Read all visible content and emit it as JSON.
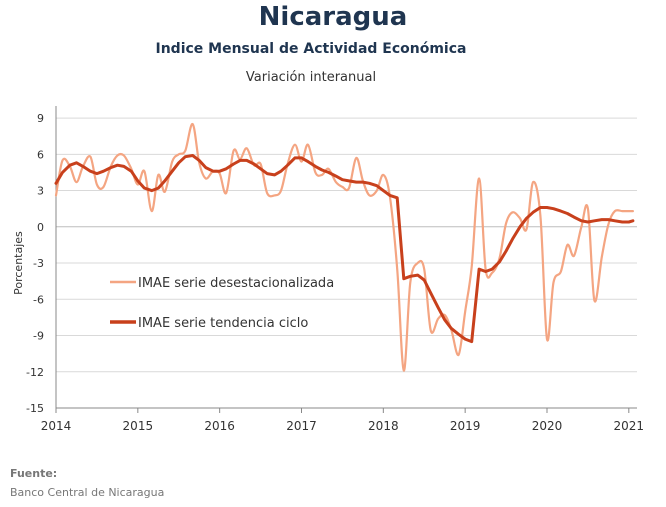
{
  "header": {
    "title": "Nicaragua",
    "subtitle": "Indice Mensual de  Actividad Económica",
    "subtitle2": "Variación interanual"
  },
  "source": {
    "label": "Fuente:",
    "value": "Banco Central de Nicaragua"
  },
  "colors": {
    "raw": "#f4a582",
    "trend": "#c8401c",
    "grid": "#d9d9d9",
    "axis": "#888888"
  },
  "chart_data": {
    "type": "line",
    "title": "",
    "xlabel": "",
    "ylabel": "Porcentajes",
    "xlim": [
      2014,
      2021.1
    ],
    "ylim": [
      -15,
      10
    ],
    "x_ticks": [
      2014,
      2015,
      2016,
      2017,
      2018,
      2019,
      2020,
      2021
    ],
    "x_tick_labels": [
      "2014",
      "2015",
      "2016",
      "2017",
      "2018",
      "2019",
      "2020",
      "2021"
    ],
    "y_ticks": [
      -15,
      -12,
      -9,
      -6,
      -3,
      0,
      3,
      6,
      9
    ],
    "y_tick_labels": [
      "-15",
      "-12",
      "-9",
      "-6",
      "-3",
      "0",
      "3",
      "6",
      "9"
    ],
    "grid": "horizontal",
    "legend": "center-left",
    "series": [
      {
        "name": "IMAE serie desestacionalizada",
        "x": [
          2014.0,
          2014.08,
          2014.17,
          2014.25,
          2014.33,
          2014.42,
          2014.5,
          2014.58,
          2014.67,
          2014.75,
          2014.83,
          2014.92,
          2015.0,
          2015.08,
          2015.17,
          2015.25,
          2015.33,
          2015.42,
          2015.5,
          2015.58,
          2015.67,
          2015.75,
          2015.83,
          2015.92,
          2016.0,
          2016.08,
          2016.17,
          2016.25,
          2016.33,
          2016.42,
          2016.5,
          2016.58,
          2016.67,
          2016.75,
          2016.83,
          2016.92,
          2017.0,
          2017.08,
          2017.17,
          2017.25,
          2017.33,
          2017.42,
          2017.5,
          2017.58,
          2017.67,
          2017.75,
          2017.83,
          2017.92,
          2018.0,
          2018.08,
          2018.17,
          2018.25,
          2018.33,
          2018.42,
          2018.5,
          2018.58,
          2018.67,
          2018.75,
          2018.83,
          2018.92,
          2019.0,
          2019.08,
          2019.17,
          2019.25,
          2019.33,
          2019.42,
          2019.5,
          2019.58,
          2019.67,
          2019.75,
          2019.83,
          2019.92,
          2020.0,
          2020.08,
          2020.17,
          2020.25,
          2020.33,
          2020.42,
          2020.5,
          2020.58,
          2020.67,
          2020.75,
          2020.83,
          2020.92,
          2021.0,
          2021.05
        ],
        "values": [
          2.6,
          5.5,
          5.0,
          3.7,
          5.0,
          5.8,
          3.5,
          3.3,
          5.0,
          5.9,
          5.9,
          4.8,
          3.5,
          4.6,
          1.3,
          4.3,
          2.9,
          5.4,
          6.0,
          6.3,
          8.5,
          5.3,
          4.0,
          4.6,
          4.4,
          2.8,
          6.3,
          5.6,
          6.5,
          5.1,
          5.2,
          2.8,
          2.6,
          3.0,
          5.2,
          6.8,
          5.4,
          6.8,
          4.5,
          4.3,
          4.8,
          3.7,
          3.3,
          3.2,
          5.7,
          3.8,
          2.6,
          3.0,
          4.3,
          2.5,
          -3.5,
          -11.9,
          -4.6,
          -3.0,
          -3.5,
          -8.6,
          -7.6,
          -7.3,
          -8.5,
          -10.6,
          -7.0,
          -3.3,
          4.0,
          -3.5,
          -3.8,
          -2.6,
          0.3,
          1.2,
          0.7,
          -0.2,
          3.7,
          0.9,
          -9.3,
          -4.6,
          -3.7,
          -1.5,
          -2.4,
          0.0,
          1.5,
          -6.1,
          -2.5,
          0.2,
          1.3,
          1.3,
          1.3,
          1.3
        ]
      },
      {
        "name": "IMAE serie  tendencia ciclo",
        "x": [
          2014.0,
          2014.08,
          2014.17,
          2014.25,
          2014.33,
          2014.42,
          2014.5,
          2014.58,
          2014.67,
          2014.75,
          2014.83,
          2014.92,
          2015.0,
          2015.08,
          2015.17,
          2015.25,
          2015.33,
          2015.42,
          2015.5,
          2015.58,
          2015.67,
          2015.75,
          2015.83,
          2015.92,
          2016.0,
          2016.08,
          2016.17,
          2016.25,
          2016.33,
          2016.42,
          2016.5,
          2016.58,
          2016.67,
          2016.75,
          2016.83,
          2016.92,
          2017.0,
          2017.08,
          2017.17,
          2017.25,
          2017.33,
          2017.42,
          2017.5,
          2017.58,
          2017.67,
          2017.75,
          2017.83,
          2017.92,
          2018.0,
          2018.08,
          2018.17,
          2018.25,
          2018.33,
          2018.42,
          2018.5,
          2018.58,
          2018.67,
          2018.75,
          2018.83,
          2018.92,
          2019.0,
          2019.08,
          2019.17,
          2019.25,
          2019.33,
          2019.42,
          2019.5,
          2019.58,
          2019.67,
          2019.75,
          2019.83,
          2019.92,
          2020.0,
          2020.08,
          2020.17,
          2020.25,
          2020.33,
          2020.42,
          2020.5,
          2020.58,
          2020.67,
          2020.75,
          2020.83,
          2020.92,
          2021.0,
          2021.05
        ],
        "values": [
          3.6,
          4.5,
          5.1,
          5.3,
          5.0,
          4.6,
          4.4,
          4.6,
          4.9,
          5.1,
          5.0,
          4.6,
          3.8,
          3.2,
          3.0,
          3.2,
          3.8,
          4.6,
          5.3,
          5.8,
          5.9,
          5.5,
          4.9,
          4.6,
          4.6,
          4.8,
          5.2,
          5.5,
          5.5,
          5.2,
          4.8,
          4.4,
          4.3,
          4.6,
          5.1,
          5.7,
          5.7,
          5.4,
          5.0,
          4.7,
          4.5,
          4.2,
          3.9,
          3.8,
          3.7,
          3.7,
          3.6,
          3.4,
          3.0,
          2.6,
          2.4,
          -4.3,
          -4.1,
          -4.0,
          -4.4,
          -5.5,
          -6.7,
          -7.7,
          -8.4,
          -8.9,
          -9.3,
          -9.5,
          -3.5,
          -3.7,
          -3.5,
          -2.9,
          -2.0,
          -1.0,
          0.0,
          0.7,
          1.2,
          1.6,
          1.6,
          1.5,
          1.3,
          1.1,
          0.8,
          0.5,
          0.4,
          0.5,
          0.6,
          0.6,
          0.5,
          0.4,
          0.4,
          0.5
        ]
      }
    ]
  }
}
